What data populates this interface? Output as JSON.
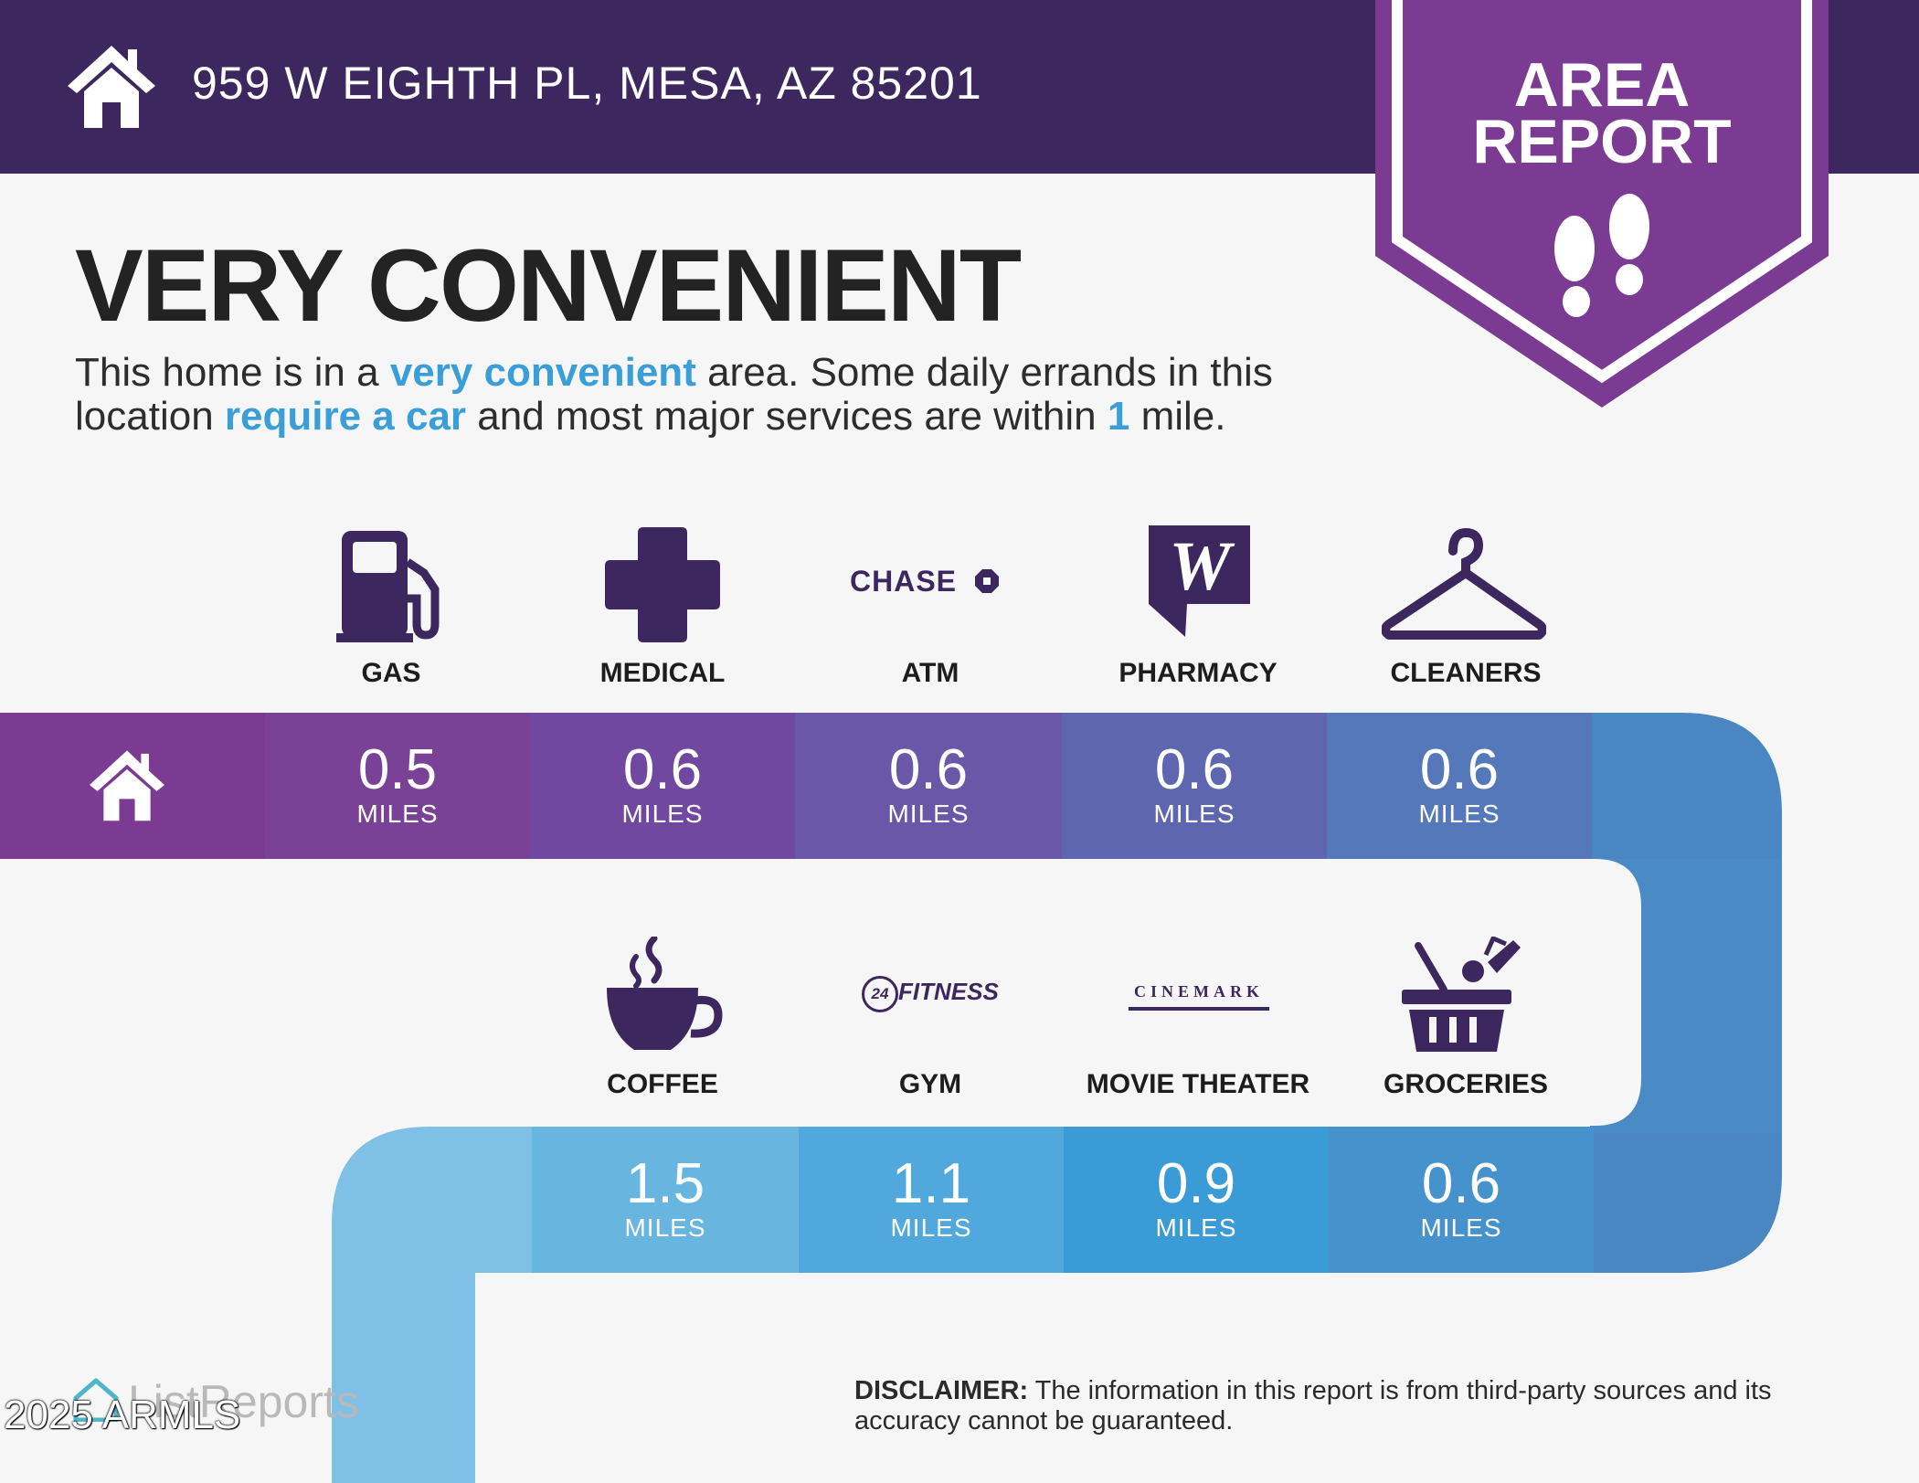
{
  "header": {
    "address": "959 W EIGHTH PL, MESA, AZ 85201",
    "home_icon": "home-icon"
  },
  "badge": {
    "title_line1": "AREA",
    "title_line2": "REPORT",
    "icon": "footprints-icon"
  },
  "headline": "VERY CONVENIENT",
  "summary": {
    "part1": "This home is in a ",
    "hl1": "very convenient",
    "part2": " area. Some daily errands in this location ",
    "hl2": "require a car",
    "part3": " and most major services are within ",
    "hl3": "1",
    "part4": " mile."
  },
  "route": {
    "start_icon": "home-icon",
    "unit": "MILES",
    "row1": [
      {
        "label": "GAS",
        "value": "0.5",
        "icon": "gas-pump-icon"
      },
      {
        "label": "MEDICAL",
        "value": "0.6",
        "icon": "medical-cross-icon"
      },
      {
        "label": "ATM",
        "value": "0.6",
        "icon": "chase-logo",
        "brand": "CHASE"
      },
      {
        "label": "PHARMACY",
        "value": "0.6",
        "icon": "walgreens-logo",
        "brand": "W"
      },
      {
        "label": "CLEANERS",
        "value": "0.6",
        "icon": "hanger-icon"
      }
    ],
    "row2": [
      {
        "label": "COFFEE",
        "value": "1.5",
        "icon": "coffee-cup-icon"
      },
      {
        "label": "GYM",
        "value": "1.1",
        "icon": "24-hour-fitness-logo",
        "brand": "FITNESS",
        "brand_badge": "24"
      },
      {
        "label": "MOVIE THEATER",
        "value": "0.9",
        "icon": "cinemark-logo",
        "brand": "CINEMARK"
      },
      {
        "label": "GROCERIES",
        "value": "0.6",
        "icon": "grocery-basket-icon"
      }
    ]
  },
  "colors": {
    "header_bg": "#3c285e",
    "badge_purple": "#7b3b93",
    "accent_blue": "#3a9fd8",
    "icon_purple": "#3c285e"
  },
  "footer": {
    "logo_text": "ListReports",
    "copyright": "2025 ARMLS",
    "disclaimer_label": "DISCLAIMER:",
    "disclaimer_text": " The information in this report is from third-party sources and its accuracy cannot be guaranteed."
  }
}
